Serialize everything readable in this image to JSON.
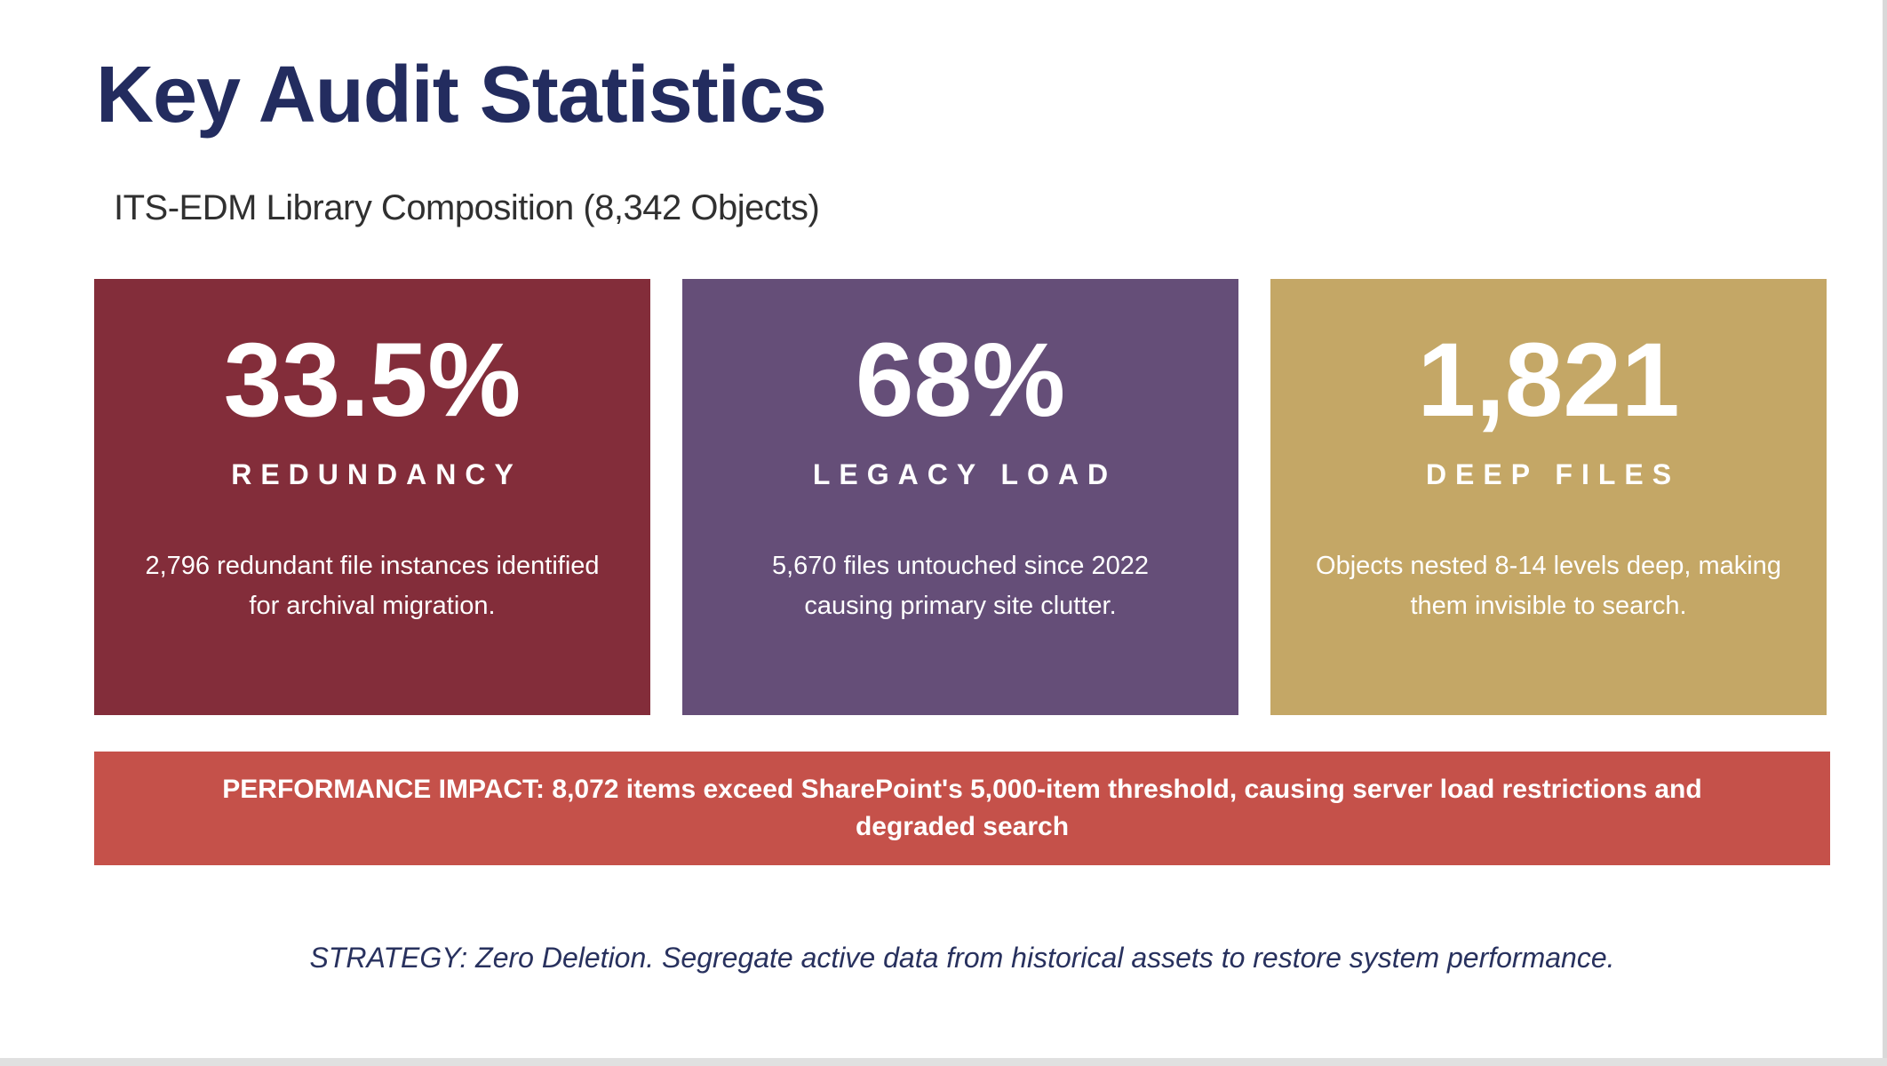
{
  "slide": {
    "title": "Key Audit Statistics",
    "subtitle": "ITS-EDM Library Composition (8,342 Objects)",
    "strategy_note": "STRATEGY: Zero Deletion. Segregate active data from historical assets to restore system performance."
  },
  "stat_cards": [
    {
      "value": "33.5%",
      "label": "REDUNDANCY",
      "description": "2,796 redundant file instances identified for archival migration.",
      "bg_color": "#832d3a"
    },
    {
      "value": "68%",
      "label": "LEGACY LOAD",
      "description": "5,670 files untouched since 2022 causing primary site clutter.",
      "bg_color": "#654e78"
    },
    {
      "value": "1,821",
      "label": "DEEP FILES",
      "description": "Objects nested 8-14 levels deep, making them invisible to search.",
      "bg_color": "#c4a766"
    }
  ],
  "impact_banner": {
    "line1": "PERFORMANCE IMPACT: 8,072 items exceed SharePoint's 5,000-item threshold, causing server load restrictions and",
    "line2": "degraded search",
    "bg_color": "#c5514a"
  },
  "colors": {
    "title_navy": "#232c5f",
    "subtitle_gray": "#303030",
    "strategy_navy": "#28315e",
    "edge_gray": "#d9d9d9"
  }
}
